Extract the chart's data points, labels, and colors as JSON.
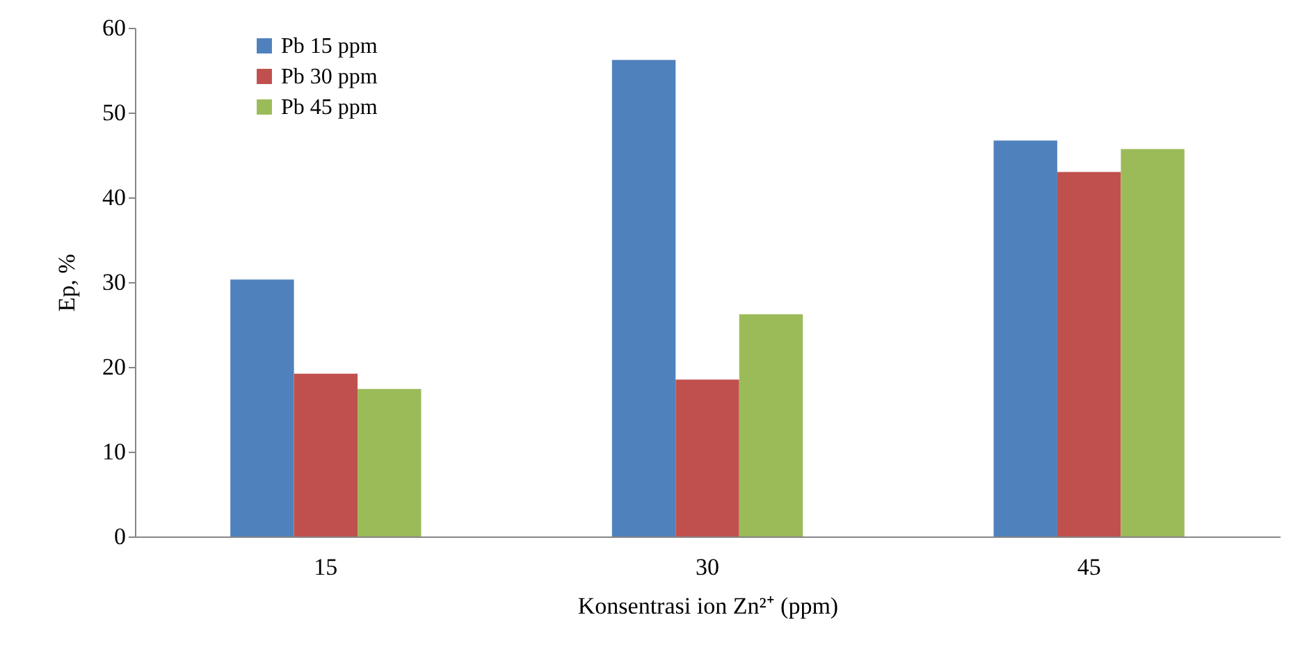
{
  "chart_data": {
    "type": "bar",
    "xlabel": "Konsentrasi ion Zn²⁺ (ppm)",
    "ylabel": "Ep,  %",
    "categories": [
      "15",
      "30",
      "45"
    ],
    "series": [
      {
        "name": "Pb 15 ppm",
        "color": "#4f81bd",
        "values": [
          30.3,
          56.2,
          46.7
        ]
      },
      {
        "name": "Pb 30 ppm",
        "color": "#c0504d",
        "values": [
          19.2,
          18.5,
          43.0
        ]
      },
      {
        "name": "Pb 45 ppm",
        "color": "#9bbb59",
        "values": [
          17.4,
          26.2,
          45.7
        ]
      }
    ],
    "ylim": [
      0,
      60
    ],
    "yticks": [
      0,
      10,
      20,
      30,
      40,
      50,
      60
    ],
    "grid": false,
    "legend": "top left"
  }
}
